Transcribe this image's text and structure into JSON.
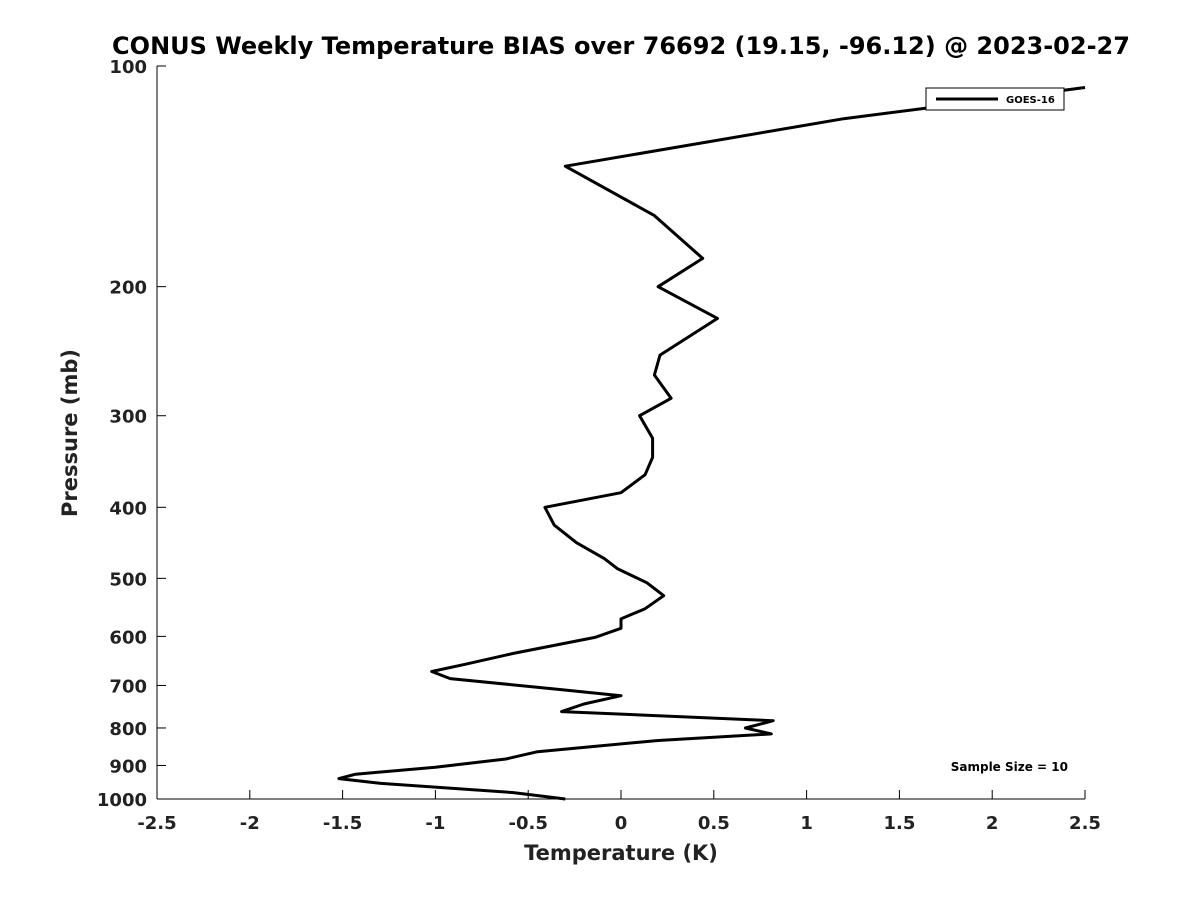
{
  "chart_data": {
    "type": "line",
    "title": "CONUS Weekly Temperature BIAS over 76692 (19.15, -96.12) @ 2023-02-27",
    "xlabel": "Temperature (K)",
    "ylabel": "Pressure (mb)",
    "xlim": [
      -2.5,
      2.5
    ],
    "ylim": [
      1000,
      100
    ],
    "y_scale": "log",
    "x_ticks": [
      -2.5,
      -2,
      -1.5,
      -1,
      -0.5,
      0,
      0.5,
      1,
      1.5,
      2,
      2.5
    ],
    "x_tick_labels": [
      "-2.5",
      "-2",
      "-1.5",
      "-1",
      "-0.5",
      "0",
      "0.5",
      "1",
      "1.5",
      "2",
      "2.5"
    ],
    "y_ticks": [
      100,
      200,
      300,
      400,
      500,
      600,
      700,
      800,
      900,
      1000
    ],
    "y_tick_labels": [
      "100",
      "200",
      "300",
      "400",
      "500",
      "600",
      "700",
      "800",
      "900",
      "1000"
    ],
    "grid": false,
    "legend_position": "top-right",
    "series": [
      {
        "name": "GOES-16",
        "color": "#000000",
        "points": [
          {
            "x": 2.5,
            "y": 107
          },
          {
            "x": 1.9,
            "y": 112
          },
          {
            "x": 1.2,
            "y": 118
          },
          {
            "x": -0.3,
            "y": 137
          },
          {
            "x": 0.18,
            "y": 160
          },
          {
            "x": 0.44,
            "y": 183
          },
          {
            "x": 0.2,
            "y": 200
          },
          {
            "x": 0.52,
            "y": 221
          },
          {
            "x": 0.21,
            "y": 248
          },
          {
            "x": 0.18,
            "y": 264
          },
          {
            "x": 0.27,
            "y": 284
          },
          {
            "x": 0.1,
            "y": 300
          },
          {
            "x": 0.17,
            "y": 322
          },
          {
            "x": 0.17,
            "y": 342
          },
          {
            "x": 0.13,
            "y": 361
          },
          {
            "x": 0.0,
            "y": 382
          },
          {
            "x": -0.41,
            "y": 400
          },
          {
            "x": -0.36,
            "y": 423
          },
          {
            "x": -0.24,
            "y": 447
          },
          {
            "x": -0.09,
            "y": 470
          },
          {
            "x": -0.02,
            "y": 485
          },
          {
            "x": 0.14,
            "y": 507
          },
          {
            "x": 0.23,
            "y": 528
          },
          {
            "x": 0.13,
            "y": 550
          },
          {
            "x": 0.0,
            "y": 568
          },
          {
            "x": 0.0,
            "y": 585
          },
          {
            "x": -0.14,
            "y": 602
          },
          {
            "x": -0.58,
            "y": 633
          },
          {
            "x": -0.84,
            "y": 655
          },
          {
            "x": -1.02,
            "y": 670
          },
          {
            "x": -0.92,
            "y": 685
          },
          {
            "x": -0.35,
            "y": 708
          },
          {
            "x": 0.0,
            "y": 723
          },
          {
            "x": -0.2,
            "y": 742
          },
          {
            "x": -0.32,
            "y": 760
          },
          {
            "x": 0.82,
            "y": 782
          },
          {
            "x": 0.67,
            "y": 800
          },
          {
            "x": 0.81,
            "y": 815
          },
          {
            "x": 0.2,
            "y": 832
          },
          {
            "x": -0.45,
            "y": 862
          },
          {
            "x": -0.62,
            "y": 882
          },
          {
            "x": -1.0,
            "y": 905
          },
          {
            "x": -1.43,
            "y": 925
          },
          {
            "x": -1.52,
            "y": 938
          },
          {
            "x": -1.3,
            "y": 952
          },
          {
            "x": -0.58,
            "y": 980
          },
          {
            "x": -0.3,
            "y": 1000
          }
        ]
      }
    ],
    "annotations": [
      {
        "text": "Sample Size = 10",
        "position": "bottom-right"
      }
    ]
  }
}
